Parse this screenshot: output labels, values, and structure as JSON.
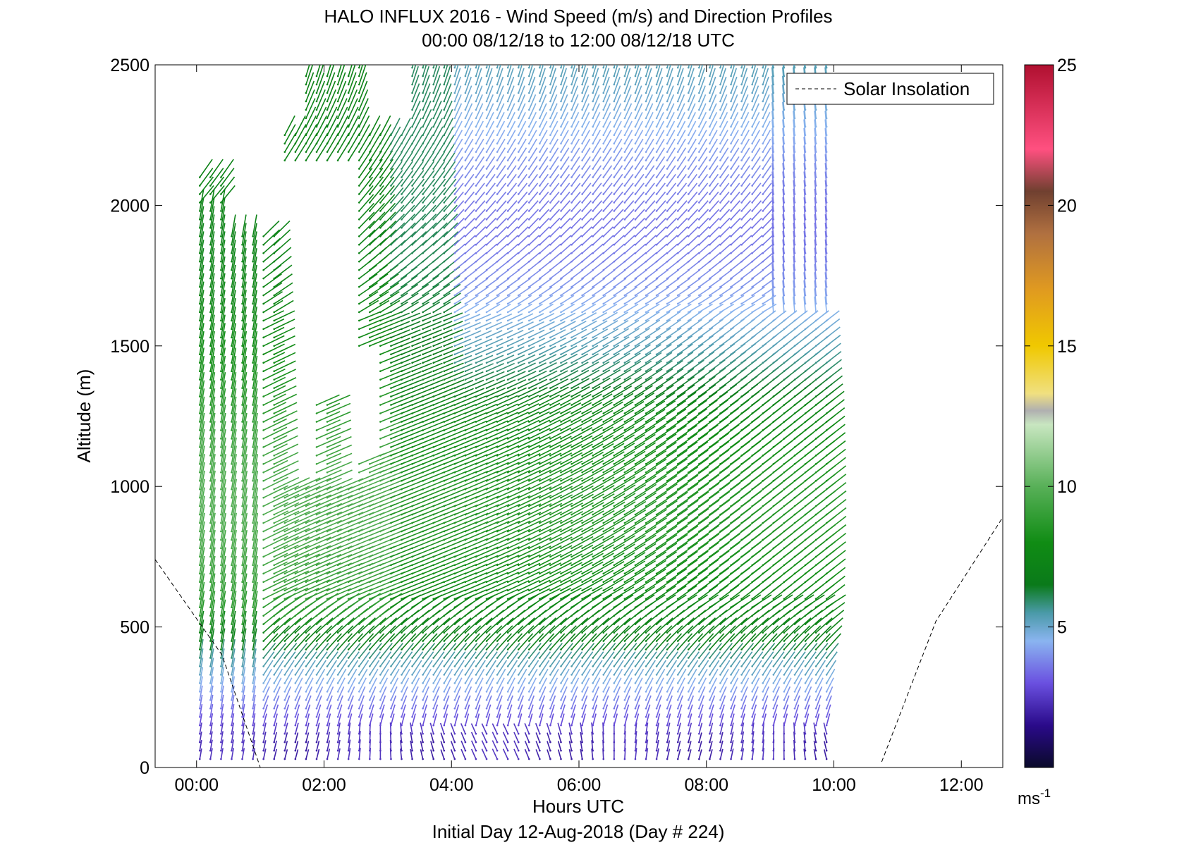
{
  "chart_data": {
    "type": "quiver",
    "title": "HALO INFLUX 2016 - Wind Speed (m/s) and Direction Profiles",
    "subtitle": "00:00 08/12/18 to 12:00 08/12/18  UTC",
    "xlabel": "Hours UTC",
    "ylabel": "Altitude (m)",
    "footer": "Initial Day 12-Aug-2018 (Day # 224)",
    "xlim": [
      -0.65,
      12.65
    ],
    "ylim": [
      0,
      2500
    ],
    "x_ticks": [
      0,
      2,
      4,
      6,
      8,
      10,
      12
    ],
    "x_tick_labels": [
      "00:00",
      "02:00",
      "04:00",
      "06:00",
      "08:00",
      "10:00",
      "12:00"
    ],
    "y_ticks": [
      0,
      500,
      1000,
      1500,
      2000,
      2500
    ],
    "y_tick_labels": [
      "0",
      "500",
      "1000",
      "1500",
      "2000",
      "2500"
    ],
    "legend": {
      "label": "Solar Insolation",
      "position": "top-right",
      "style": "dashed"
    },
    "colorbar": {
      "min": 0,
      "max": 25,
      "ticks": [
        5,
        10,
        15,
        20,
        25
      ],
      "tick_labels": [
        "5",
        "10",
        "15",
        "20",
        "25"
      ],
      "unit_label": "ms",
      "unit_exp": "-1",
      "stops": [
        {
          "v": 0,
          "c": "#0a0a2a"
        },
        {
          "v": 1.5,
          "c": "#2a0a8a"
        },
        {
          "v": 3,
          "c": "#6a50e0"
        },
        {
          "v": 4.5,
          "c": "#8ab4f0"
        },
        {
          "v": 5.5,
          "c": "#4a9aa8"
        },
        {
          "v": 6.5,
          "c": "#0a7a1a"
        },
        {
          "v": 8,
          "c": "#108c14"
        },
        {
          "v": 10,
          "c": "#58b058"
        },
        {
          "v": 12.2,
          "c": "#c8e6c0"
        },
        {
          "v": 12.7,
          "c": "#b0b0b0"
        },
        {
          "v": 13.3,
          "c": "#f0e080"
        },
        {
          "v": 15,
          "c": "#f0c800"
        },
        {
          "v": 17,
          "c": "#e09a20"
        },
        {
          "v": 19,
          "c": "#b07040"
        },
        {
          "v": 20.5,
          "c": "#704030"
        },
        {
          "v": 22,
          "c": "#ff5080"
        },
        {
          "v": 25,
          "c": "#b01030"
        }
      ]
    },
    "solar_insolation": [
      {
        "x": -0.65,
        "y": 740
      },
      {
        "x": 0.4,
        "y": 400
      },
      {
        "x": 1.0,
        "y": 0
      },
      {
        "x": 10.75,
        "y": 20
      },
      {
        "x": 11.6,
        "y": 520
      },
      {
        "x": 12.65,
        "y": 890
      }
    ],
    "wind_profiles": {
      "start_hour": 0.05,
      "interval_hours": 0.1667,
      "count": 60,
      "alt_levels": [
        30,
        60,
        90,
        120,
        150,
        180,
        210,
        240,
        270,
        300,
        330,
        360,
        390,
        420,
        450,
        480,
        510,
        540,
        570,
        600,
        630,
        660,
        690,
        720,
        750,
        780,
        810,
        840,
        870,
        900,
        930,
        960,
        990,
        1020,
        1050,
        1080,
        1110,
        1140,
        1170,
        1200,
        1230,
        1260,
        1290,
        1320,
        1350,
        1380,
        1410,
        1440,
        1470,
        1500,
        1530,
        1560,
        1590,
        1620,
        1650,
        1680,
        1710,
        1740,
        1770,
        1800,
        1830,
        1860,
        1890,
        1920,
        1950,
        1980,
        2010,
        2040,
        2070,
        2100,
        2130,
        2160,
        2190,
        2220,
        2250,
        2280,
        2310,
        2340,
        2370,
        2400,
        2430,
        2460,
        2490
      ],
      "speed_by_altitude_and_time": {
        "note_range_ms": [
          0.5,
          23
        ],
        "description_levels": [
          {
            "alt": 50,
            "speed_ms": 2.5
          },
          {
            "alt": 300,
            "speed_ms": 4.5
          },
          {
            "alt": 800,
            "speed_ms": 8
          },
          {
            "alt": 1500,
            "speed_ms": 6
          },
          {
            "alt": 2400,
            "speed_ms": 7
          }
        ]
      }
    }
  }
}
